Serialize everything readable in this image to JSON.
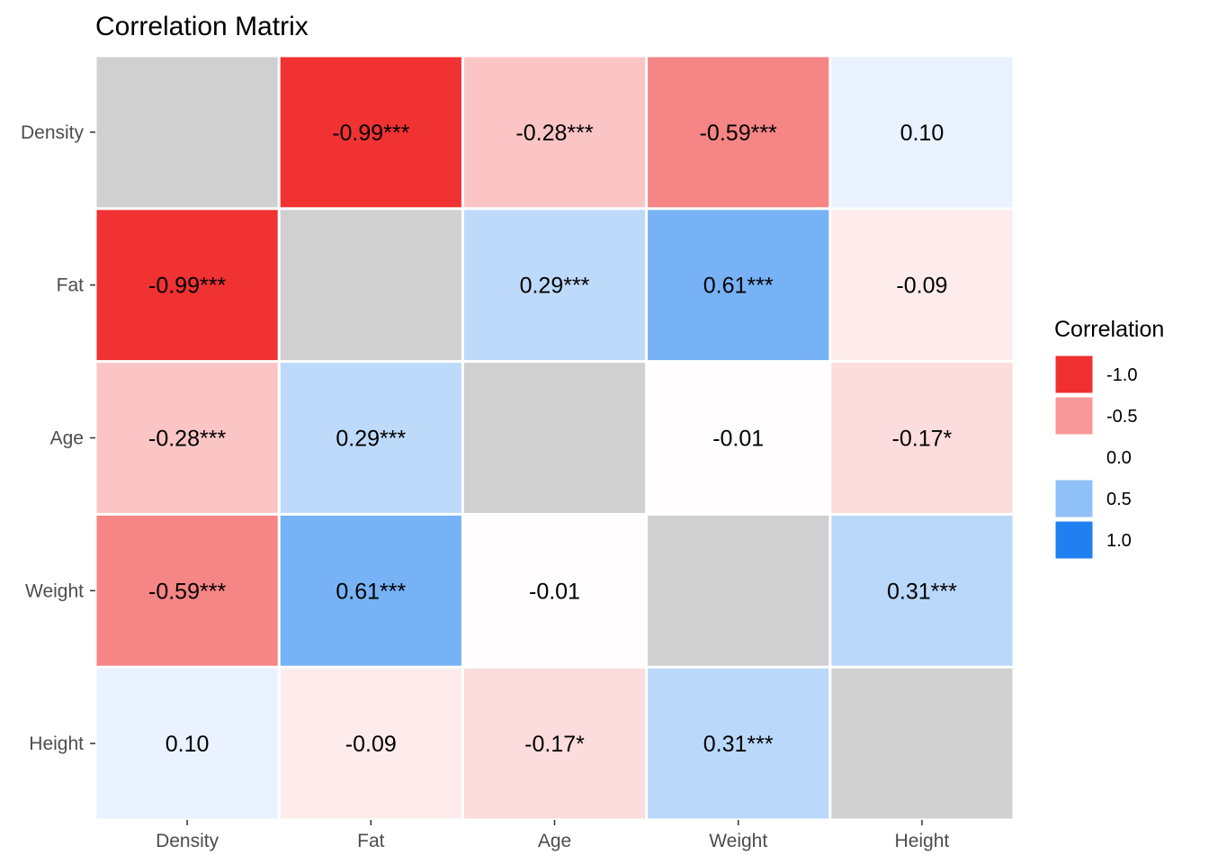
{
  "chart_data": {
    "type": "heatmap",
    "title": "Correlation Matrix",
    "xlabel": "",
    "ylabel": "",
    "variables": [
      "Density",
      "Fat",
      "Age",
      "Weight",
      "Height"
    ],
    "matrix": [
      [
        null,
        -0.99,
        -0.28,
        -0.59,
        0.1
      ],
      [
        -0.99,
        null,
        0.29,
        0.61,
        -0.09
      ],
      [
        -0.28,
        0.29,
        null,
        -0.01,
        -0.17
      ],
      [
        -0.59,
        0.61,
        -0.01,
        null,
        0.31
      ],
      [
        0.1,
        -0.09,
        -0.17,
        0.31,
        null
      ]
    ],
    "labels": [
      [
        "",
        "-0.99***",
        "-0.28***",
        "-0.59***",
        "0.10"
      ],
      [
        "-0.99***",
        "",
        "0.29***",
        "0.61***",
        "-0.09"
      ],
      [
        "-0.28***",
        "0.29***",
        "",
        "-0.01",
        "-0.17*"
      ],
      [
        "-0.59***",
        "0.61***",
        "-0.01",
        "",
        "0.31***"
      ],
      [
        "0.10",
        "-0.09",
        "-0.17*",
        "0.31***",
        ""
      ]
    ],
    "diagonal_color": "#d0d0d0",
    "color_scale": {
      "low": "#f03030",
      "mid": "#ffffff",
      "high": "#2080f0",
      "limits": [
        -1,
        1
      ]
    },
    "legend": {
      "title": "Correlation",
      "placement": "right",
      "entries": [
        {
          "label": "-1.0",
          "value": -1.0
        },
        {
          "label": "-0.5",
          "value": -0.5
        },
        {
          "label": "0.0",
          "value": 0.0
        },
        {
          "label": "0.5",
          "value": 0.5
        },
        {
          "label": "1.0",
          "value": 1.0
        }
      ]
    },
    "grid": false
  }
}
